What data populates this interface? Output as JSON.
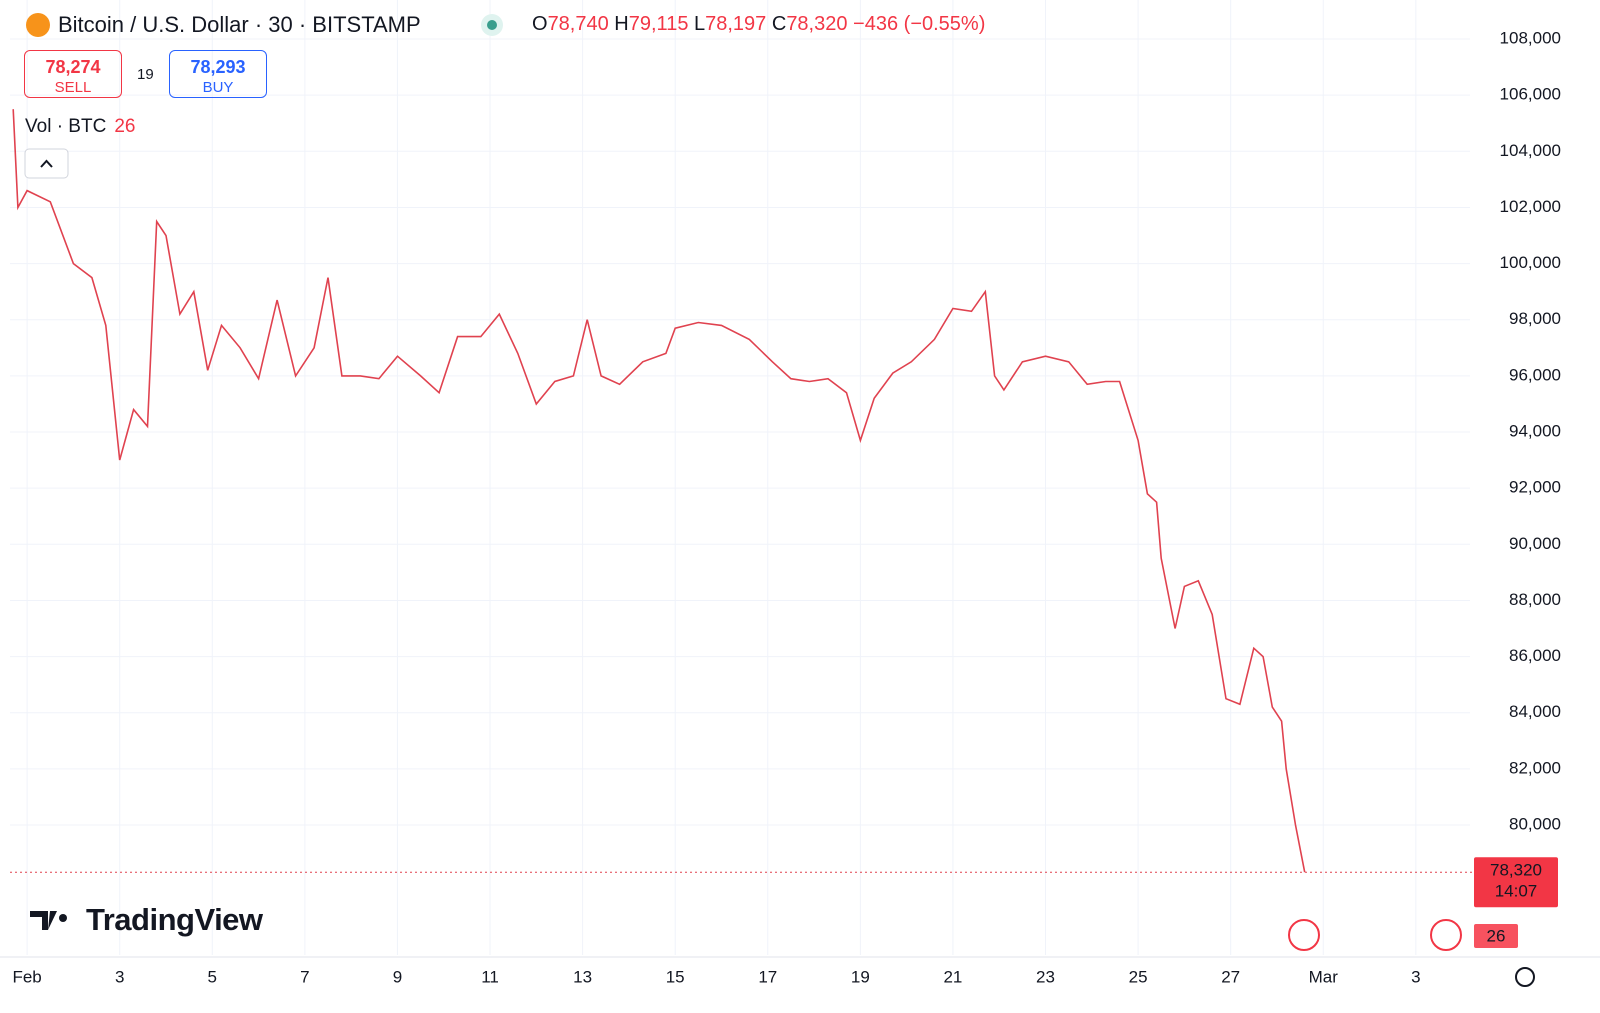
{
  "header": {
    "symbol": "Bitcoin / U.S. Dollar · 30 · BITSTAMP",
    "open_label": "O",
    "open": "78,740",
    "high_label": "H",
    "high": "79,115",
    "low_label": "L",
    "low": "78,197",
    "close_label": "C",
    "close": "78,320",
    "change": "−436 (−0.55%)"
  },
  "trade": {
    "sell_price": "78,274",
    "sell_label": "SELL",
    "spread": "19",
    "buy_price": "78,293",
    "buy_label": "BUY"
  },
  "volume_legend": {
    "label": "Vol · BTC",
    "value": "26"
  },
  "price_tag": {
    "price": "78,320",
    "countdown": "14:07"
  },
  "volume_tag": "26",
  "logo": "TradingView",
  "chart_data": {
    "type": "line",
    "color": "#e0424f",
    "grid": true,
    "x": [
      0.7,
      0.8,
      1.0,
      1.5,
      2.0,
      2.4,
      2.7,
      3.0,
      3.3,
      3.6,
      3.8,
      4.0,
      4.3,
      4.6,
      4.9,
      5.2,
      5.6,
      6.0,
      6.4,
      6.8,
      7.2,
      7.5,
      7.8,
      8.2,
      8.6,
      9.0,
      9.5,
      9.9,
      10.3,
      10.8,
      11.2,
      11.6,
      12.0,
      12.4,
      12.8,
      13.1,
      13.4,
      13.8,
      14.3,
      14.8,
      15.0,
      15.5,
      16.0,
      16.6,
      17.1,
      17.5,
      17.9,
      18.3,
      18.7,
      19.0,
      19.3,
      19.7,
      20.1,
      20.6,
      21.0,
      21.4,
      21.7,
      21.9,
      22.1,
      22.5,
      23.0,
      23.5,
      23.9,
      24.3,
      24.6,
      25.0,
      25.2,
      25.4,
      25.5,
      25.8,
      26.0,
      26.3,
      26.6,
      26.9,
      27.2,
      27.5,
      27.7,
      27.9,
      28.1,
      28.2,
      28.4,
      28.6
    ],
    "values": [
      105500,
      102000,
      102600,
      102200,
      100000,
      99500,
      97800,
      93000,
      94800,
      94200,
      101500,
      101000,
      98200,
      99000,
      96200,
      97800,
      97000,
      95900,
      98700,
      96000,
      97000,
      99500,
      96000,
      96000,
      95900,
      96700,
      96000,
      95400,
      97400,
      97400,
      98200,
      96800,
      95000,
      95800,
      96000,
      98000,
      96000,
      95700,
      96500,
      96800,
      97700,
      97900,
      97800,
      97300,
      96500,
      95900,
      95800,
      95900,
      95400,
      93700,
      95200,
      96100,
      96500,
      97300,
      98400,
      98300,
      99000,
      96000,
      95500,
      96500,
      96700,
      96500,
      95700,
      95800,
      95800,
      93700,
      91800,
      91500,
      89500,
      87000,
      88500,
      88700,
      87500,
      84500,
      84300,
      86300,
      86000,
      84200,
      83700,
      82000,
      80000,
      78320
    ],
    "xlim": [
      0.63,
      32.17
    ],
    "xticks": [
      {
        "value": 1,
        "label": "Feb"
      },
      3,
      5,
      7,
      9,
      11,
      13,
      15,
      17,
      19,
      21,
      23,
      25,
      27,
      {
        "value": 29,
        "label": "Mar"
      },
      {
        "value": 31,
        "label": "3"
      }
    ],
    "ylim": [
      75370,
      109390
    ],
    "yticks": [
      {
        "value": 80000,
        "label": "80,000"
      },
      {
        "value": 82000,
        "label": "82,000"
      },
      {
        "value": 84000,
        "label": "84,000"
      },
      {
        "value": 86000,
        "label": "86,000"
      },
      {
        "value": 88000,
        "label": "88,000"
      },
      {
        "value": 90000,
        "label": "90,000"
      },
      {
        "value": 92000,
        "label": "92,000"
      },
      {
        "value": 94000,
        "label": "94,000"
      },
      {
        "value": 96000,
        "label": "96,000"
      },
      {
        "value": 98000,
        "label": "98,000"
      },
      {
        "value": 100000,
        "label": "100,000"
      },
      {
        "value": 102000,
        "label": "102,000"
      },
      {
        "value": 104000,
        "label": "104,000"
      },
      {
        "value": 106000,
        "label": "106,000"
      },
      {
        "value": 108000,
        "label": "108,000"
      }
    ]
  }
}
